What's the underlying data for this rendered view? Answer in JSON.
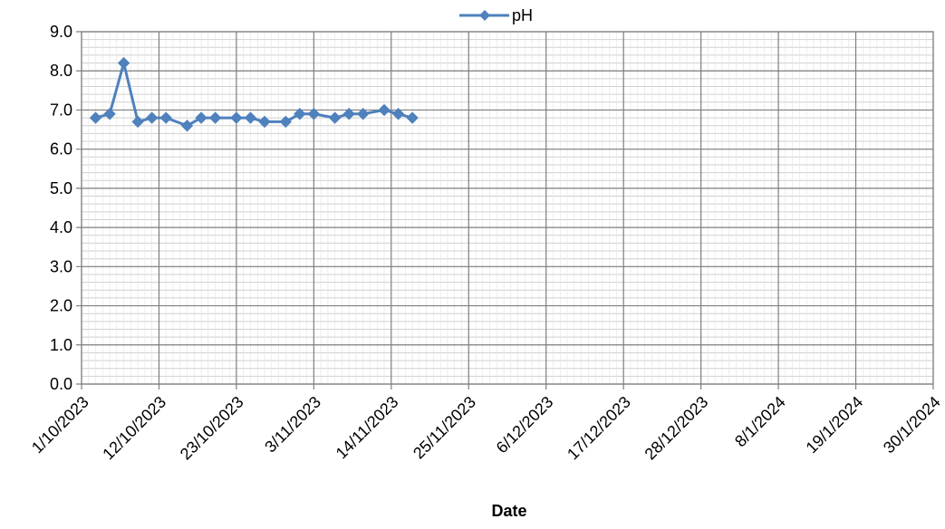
{
  "chart_data": {
    "type": "line",
    "xlabel": "Date",
    "ylabel": "",
    "x_type": "date",
    "xlim": [
      "2023-10-01",
      "2024-01-30"
    ],
    "x_major_ticks": [
      "2023-10-01",
      "2023-10-12",
      "2023-10-23",
      "2023-11-03",
      "2023-11-14",
      "2023-11-25",
      "2023-12-06",
      "2023-12-17",
      "2023-12-28",
      "2024-01-08",
      "2024-01-19",
      "2024-01-30"
    ],
    "x_tick_labels": [
      "1/10/2023",
      "12/10/2023",
      "23/10/2023",
      "3/11/2023",
      "14/11/2023",
      "25/11/2023",
      "6/12/2023",
      "17/12/2023",
      "28/12/2023",
      "8/1/2024",
      "19/1/2024",
      "30/1/2024"
    ],
    "ylim": [
      0,
      9
    ],
    "y_major_step": 1,
    "y_minor_step": 0.2,
    "x_minor_step_days": 1,
    "y_tick_labels": [
      "0.0",
      "1.0",
      "2.0",
      "3.0",
      "4.0",
      "5.0",
      "6.0",
      "7.0",
      "8.0",
      "9.0"
    ],
    "grid": true,
    "legend_position": "top-center",
    "series": [
      {
        "name": "pH",
        "color": "#4F81BD",
        "marker": "diamond",
        "x": [
          "2023-10-03",
          "2023-10-05",
          "2023-10-07",
          "2023-10-09",
          "2023-10-11",
          "2023-10-13",
          "2023-10-16",
          "2023-10-18",
          "2023-10-20",
          "2023-10-23",
          "2023-10-25",
          "2023-10-27",
          "2023-10-30",
          "2023-11-01",
          "2023-11-03",
          "2023-11-06",
          "2023-11-08",
          "2023-11-10",
          "2023-11-13",
          "2023-11-15",
          "2023-11-17"
        ],
        "values": [
          6.8,
          6.9,
          8.2,
          6.7,
          6.8,
          6.8,
          6.6,
          6.8,
          6.8,
          6.8,
          6.8,
          6.7,
          6.7,
          6.9,
          6.9,
          6.8,
          6.9,
          6.9,
          7.0,
          6.9,
          6.8
        ]
      }
    ]
  }
}
